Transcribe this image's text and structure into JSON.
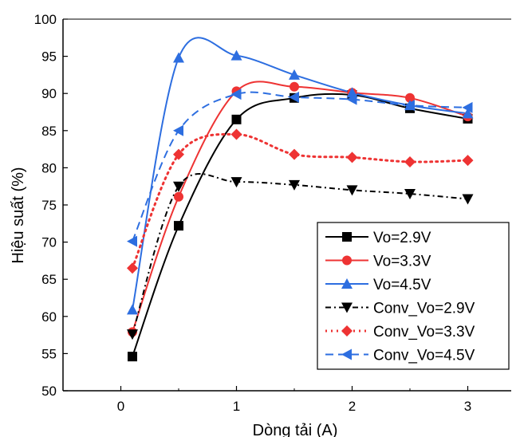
{
  "chart_data": {
    "type": "line",
    "xlabel": "Dòng tải (A)",
    "ylabel": "Hiệu suất (%)",
    "xlim": [
      -0.5,
      3.5
    ],
    "ylim": [
      50,
      100
    ],
    "xticks": [
      0,
      1,
      2,
      3
    ],
    "yticks": [
      50,
      55,
      60,
      65,
      70,
      75,
      80,
      85,
      90,
      95,
      100
    ],
    "grid": false,
    "legend_position": "bottom-right",
    "series": [
      {
        "name": "Vo=2.9V",
        "color": "#000000",
        "marker": "square",
        "dash": "solid",
        "smooth": true,
        "x": [
          0.1,
          0.5,
          1.0,
          1.5,
          2.0,
          2.5,
          3.0
        ],
        "y": [
          54.6,
          72.2,
          86.5,
          89.4,
          89.8,
          88.0,
          86.6
        ]
      },
      {
        "name": "Vo=3.3V",
        "color": "#ee3333",
        "marker": "circle",
        "dash": "solid",
        "smooth": true,
        "x": [
          0.1,
          0.5,
          1.0,
          1.5,
          2.0,
          2.5,
          3.0
        ],
        "y": [
          57.9,
          76.1,
          90.3,
          90.9,
          90.1,
          89.4,
          86.9
        ]
      },
      {
        "name": "Vo=4.5V",
        "color": "#2d6ee0",
        "marker": "triangle-up",
        "dash": "solid",
        "smooth": true,
        "x": [
          0.1,
          0.5,
          1.0,
          1.5,
          2.0,
          2.5,
          3.0
        ],
        "y": [
          60.9,
          94.8,
          95.1,
          92.5,
          90.1,
          88.4,
          87.3
        ]
      },
      {
        "name": "Conv_Vo=2.9V",
        "color": "#000000",
        "marker": "triangle-down",
        "dash": "dashdot",
        "smooth": true,
        "x": [
          0.1,
          0.5,
          1.0,
          1.5,
          2.0,
          2.5,
          3.0
        ],
        "y": [
          57.6,
          77.5,
          78.1,
          77.7,
          77.0,
          76.5,
          75.8
        ]
      },
      {
        "name": "Conv_Vo=3.3V",
        "color": "#ee3333",
        "marker": "diamond",
        "dash": "dot",
        "smooth": true,
        "x": [
          0.1,
          0.5,
          1.0,
          1.5,
          2.0,
          2.5,
          3.0
        ],
        "y": [
          66.5,
          81.8,
          84.5,
          81.8,
          81.4,
          80.8,
          81.0
        ]
      },
      {
        "name": "Conv_Vo=4.5V",
        "color": "#2d6ee0",
        "marker": "triangle-left",
        "dash": "dash",
        "smooth": true,
        "x": [
          0.1,
          0.5,
          1.0,
          1.5,
          2.0,
          2.5,
          3.0
        ],
        "y": [
          70.1,
          85.0,
          89.9,
          89.5,
          89.2,
          88.4,
          88.1
        ]
      }
    ]
  }
}
